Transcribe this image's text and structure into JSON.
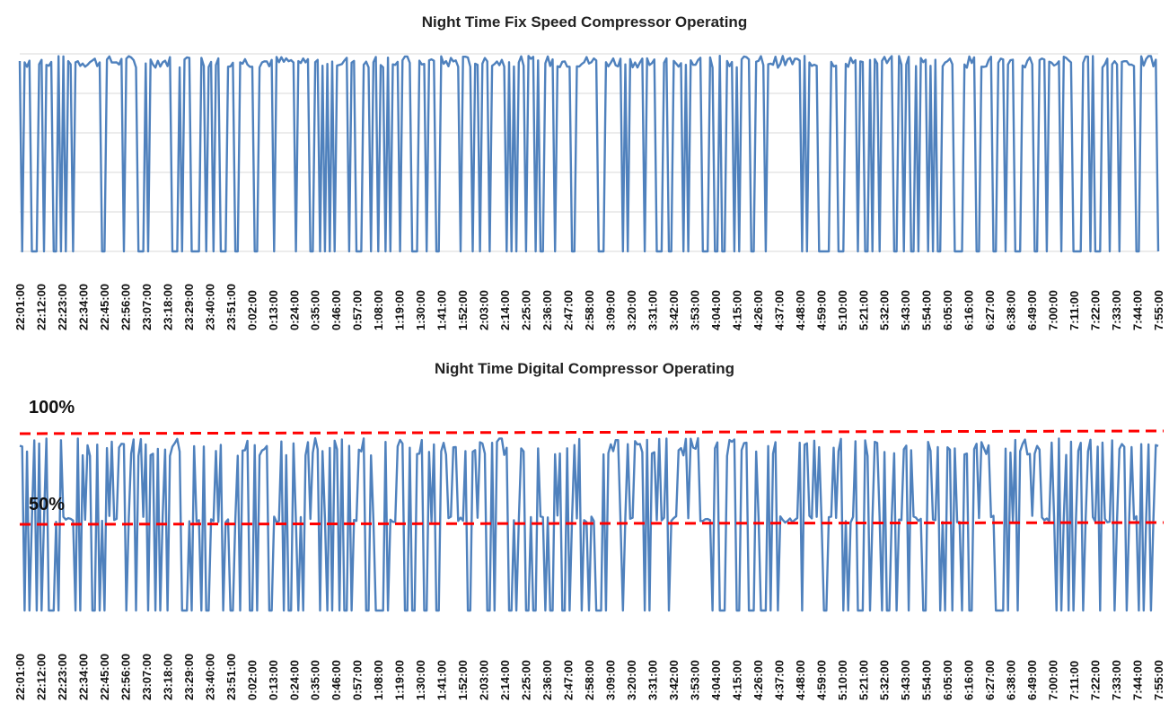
{
  "colors": {
    "series": "#4f81bd",
    "grid": "#d9d9d9",
    "threshold": "#ff0000"
  },
  "chart_data": [
    {
      "type": "line",
      "title": "Night Time Fix Speed Compressor Operating",
      "grid": true,
      "x_tick_labels": [
        "22:01:00",
        "22:12:00",
        "22:23:00",
        "22:34:00",
        "22:45:00",
        "22:56:00",
        "23:07:00",
        "23:18:00",
        "23:29:00",
        "23:40:00",
        "23:51:00",
        "0:02:00",
        "0:13:00",
        "0:24:00",
        "0:35:00",
        "0:46:00",
        "0:57:00",
        "1:08:00",
        "1:19:00",
        "1:30:00",
        "1:41:00",
        "1:52:00",
        "2:03:00",
        "2:14:00",
        "2:25:00",
        "2:36:00",
        "2:47:00",
        "2:58:00",
        "3:09:00",
        "3:20:00",
        "3:31:00",
        "3:42:00",
        "3:53:00",
        "4:04:00",
        "4:15:00",
        "4:26:00",
        "4:37:00",
        "4:48:00",
        "4:59:00",
        "5:10:00",
        "5:21:00",
        "5:32:00",
        "5:43:00",
        "5:54:00",
        "6:05:00",
        "6:16:00",
        "6:27:00",
        "6:38:00",
        "6:49:00",
        "7:00:00",
        "7:11:00",
        "7:22:00",
        "7:33:00",
        "7:44:00",
        "7:55:00"
      ],
      "ylim": [
        0,
        100
      ],
      "series": [
        {
          "name": "",
          "segments": [
            {
              "from": 0,
              "to": 4,
              "state": "on"
            },
            {
              "from": 8,
              "to": 17,
              "state": "on"
            },
            {
              "from": 18,
              "to": 48,
              "state": "on"
            },
            {
              "from": 52,
              "to": 62,
              "state": "on"
            },
            {
              "from": 66,
              "to": 76,
              "state": "on"
            },
            {
              "from": 78,
              "to": 88,
              "state": "on"
            },
            {
              "from": 90,
              "to": 104,
              "state": "on"
            },
            {
              "from": 106,
              "to": 120,
              "state": "on"
            },
            {
              "from": 122,
              "to": 138,
              "state": "on"
            },
            {
              "from": 140,
              "to": 156,
              "state": "on"
            },
            {
              "from": 158,
              "to": 172,
              "state": "on"
            },
            {
              "from": 174,
              "to": 186,
              "state": "on"
            },
            {
              "from": 188,
              "to": 214,
              "state": "on"
            },
            {
              "from": 216,
              "to": 238,
              "state": "on"
            },
            {
              "from": 242,
              "to": 262,
              "state": "on"
            },
            {
              "from": 266,
              "to": 268,
              "state": "on"
            },
            {
              "from": 270,
              "to": 296,
              "state": "on"
            },
            {
              "from": 298,
              "to": 330,
              "state": "on"
            },
            {
              "from": 334,
              "to": 354,
              "state": "on"
            },
            {
              "from": 356,
              "to": 386,
              "state": "on"
            },
            {
              "from": 388,
              "to": 410,
              "state": "on"
            },
            {
              "from": 414,
              "to": 434,
              "state": "on"
            },
            {
              "from": 438,
              "to": 470,
              "state": "on"
            }
          ],
          "on_level_pct": 95,
          "off_level_pct": 0
        }
      ]
    },
    {
      "type": "line",
      "title": "Night Time Digital Compressor Operating",
      "grid": false,
      "annotations": [
        {
          "text": "100%",
          "value": 100
        },
        {
          "text": "50%",
          "value": 50
        }
      ],
      "threshold_lines": [
        100,
        50
      ],
      "x_tick_labels": [
        "22:01:00",
        "22:12:00",
        "22:23:00",
        "22:34:00",
        "22:45:00",
        "22:56:00",
        "23:07:00",
        "23:18:00",
        "23:29:00",
        "23:40:00",
        "23:51:00",
        "0:02:00",
        "0:13:00",
        "0:24:00",
        "0:35:00",
        "0:46:00",
        "0:57:00",
        "1:08:00",
        "1:19:00",
        "1:30:00",
        "1:41:00",
        "1:52:00",
        "2:03:00",
        "2:14:00",
        "2:25:00",
        "2:36:00",
        "2:47:00",
        "2:58:00",
        "3:09:00",
        "3:20:00",
        "3:31:00",
        "3:42:00",
        "3:53:00",
        "4:04:00",
        "4:15:00",
        "4:26:00",
        "4:37:00",
        "4:48:00",
        "4:59:00",
        "5:10:00",
        "5:21:00",
        "5:32:00",
        "5:43:00",
        "5:54:00",
        "6:05:00",
        "6:16:00",
        "6:27:00",
        "6:38:00",
        "6:49:00",
        "7:00:00",
        "7:11:00",
        "7:22:00",
        "7:33:00",
        "7:44:00",
        "7:55:00"
      ],
      "ylim": [
        0,
        105
      ],
      "series": [
        {
          "name": "",
          "typical_levels_pct": [
            0,
            50,
            93
          ]
        }
      ]
    }
  ]
}
